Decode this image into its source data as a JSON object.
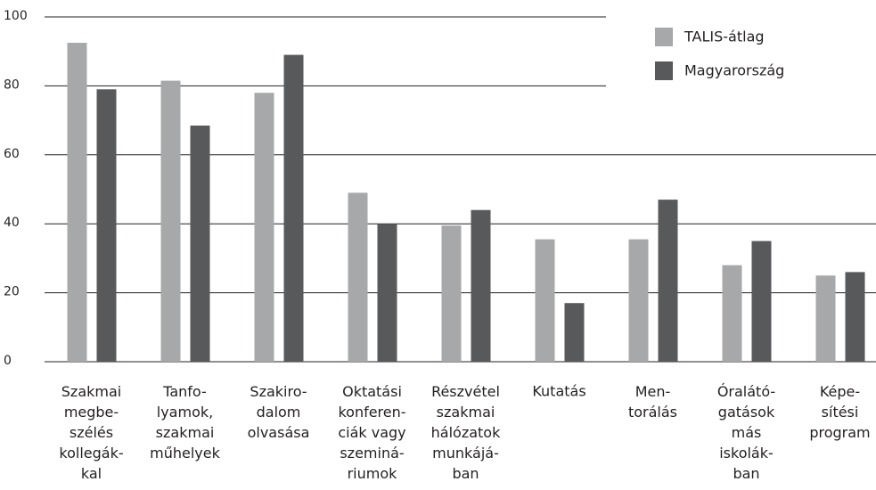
{
  "chart_data": {
    "type": "bar",
    "categories": [
      "Szakmai\nmegbe-\nszélés\nkollegák-\nkal",
      "Tanfo-\nlyamok,\nszakmai\nműhelyek",
      "Szakiro-\ndalom\nolvasása",
      "Oktatási\nkonferen-\nciák vagy\nszeminá-\nriumok",
      "Részvétel\nszakmai\nhálózatok\nmunkájá-\nban",
      "Kutatás",
      "Men-\ntorálás",
      "Óralátó-\ngatások\nmás\niskolák-\nban",
      "Képe-\nsítési\nprogram"
    ],
    "series": [
      {
        "name": "TALIS-átlag",
        "color": "#a7a8aa",
        "values": [
          92.5,
          81.5,
          78,
          49,
          39.5,
          35.5,
          35.5,
          28,
          25
        ]
      },
      {
        "name": "Magyarország",
        "color": "#58595b",
        "values": [
          79,
          68.5,
          89,
          40,
          44,
          17,
          47,
          35,
          26
        ]
      }
    ],
    "ylim": [
      0,
      100
    ],
    "yticks": [
      0,
      20,
      40,
      60,
      80,
      100
    ],
    "grid": true,
    "legend": "top-right"
  }
}
